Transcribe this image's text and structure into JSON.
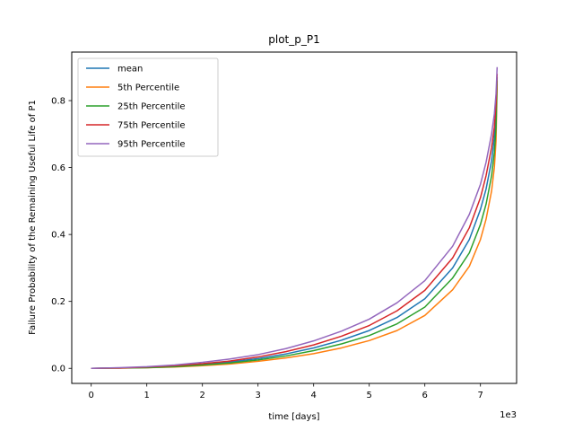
{
  "chart_data": {
    "type": "line",
    "title": "plot_p_P1",
    "xlabel": "time [days]",
    "ylabel": "Failure Probability of the Remaining Useful Life of P1",
    "x_offset_label": "1e3",
    "x_multiplier": 1000,
    "xlim": [
      -350,
      7650
    ],
    "ylim": [
      -0.045,
      0.945
    ],
    "x_ticks": [
      0,
      1000,
      2000,
      3000,
      4000,
      5000,
      6000,
      7000
    ],
    "x_tick_labels": [
      "0",
      "1",
      "2",
      "3",
      "4",
      "5",
      "6",
      "7"
    ],
    "y_ticks": [
      0.0,
      0.2,
      0.4,
      0.6,
      0.8
    ],
    "y_tick_labels": [
      "0.0",
      "0.2",
      "0.4",
      "0.6",
      "0.8"
    ],
    "grid": false,
    "legend_position": "upper-left",
    "x": [
      0,
      500,
      1000,
      1500,
      2000,
      2500,
      3000,
      3500,
      4000,
      4500,
      5000,
      5500,
      6000,
      6500,
      6800,
      7000,
      7100,
      7200,
      7250,
      7280,
      7300
    ],
    "series": [
      {
        "name": "mean",
        "color": "#1f77b4",
        "values": [
          0.0,
          0.001,
          0.003,
          0.007,
          0.012,
          0.019,
          0.029,
          0.043,
          0.061,
          0.084,
          0.113,
          0.152,
          0.208,
          0.3,
          0.385,
          0.475,
          0.535,
          0.62,
          0.69,
          0.76,
          0.87
        ]
      },
      {
        "name": "5th Percentile",
        "color": "#ff7f0e",
        "values": [
          0.0,
          0.0005,
          0.002,
          0.004,
          0.008,
          0.013,
          0.021,
          0.031,
          0.044,
          0.061,
          0.083,
          0.113,
          0.158,
          0.235,
          0.305,
          0.385,
          0.445,
          0.53,
          0.6,
          0.68,
          0.85
        ]
      },
      {
        "name": "25th Percentile",
        "color": "#2ca02c",
        "values": [
          0.0,
          0.001,
          0.002,
          0.005,
          0.01,
          0.016,
          0.025,
          0.037,
          0.053,
          0.073,
          0.098,
          0.133,
          0.183,
          0.27,
          0.345,
          0.43,
          0.49,
          0.575,
          0.645,
          0.72,
          0.86
        ]
      },
      {
        "name": "75th Percentile",
        "color": "#d62728",
        "values": [
          0.0,
          0.001,
          0.004,
          0.008,
          0.014,
          0.022,
          0.034,
          0.05,
          0.07,
          0.096,
          0.128,
          0.172,
          0.233,
          0.33,
          0.42,
          0.51,
          0.575,
          0.66,
          0.72,
          0.79,
          0.88
        ]
      },
      {
        "name": "95th Percentile",
        "color": "#9467bd",
        "values": [
          0.0,
          0.002,
          0.005,
          0.01,
          0.018,
          0.028,
          0.041,
          0.059,
          0.082,
          0.111,
          0.147,
          0.196,
          0.262,
          0.365,
          0.46,
          0.55,
          0.615,
          0.7,
          0.76,
          0.82,
          0.9
        ]
      }
    ]
  }
}
